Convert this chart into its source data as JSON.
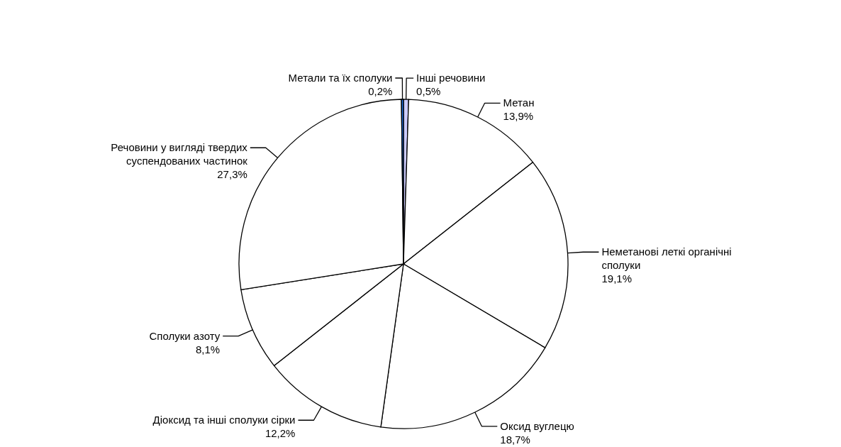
{
  "chart_data": {
    "type": "pie",
    "categories": [
      "Інші речовини",
      "Метан",
      "Неметанові леткі органічні сполуки",
      "Оксид вуглецю",
      "Діоксид та інші сполуки сірки",
      "Сполуки азоту",
      "Речовини у вигляді твердих суспендованих частинок",
      "Метали та їх сполуки"
    ],
    "values": [
      0.5,
      13.9,
      19.1,
      18.7,
      12.2,
      8.1,
      27.3,
      0.2
    ],
    "value_labels": [
      "0,5%",
      "13,9%",
      "19,1%",
      "18,7%",
      "12,2%",
      "8,1%",
      "27,3%",
      "0,2%"
    ],
    "colors": [
      "#ccccff",
      "#ffffff",
      "#ffffff",
      "#ffffff",
      "#ffffff",
      "#ffffff",
      "#ffffff",
      "#1e6fe0"
    ],
    "legend": false
  }
}
